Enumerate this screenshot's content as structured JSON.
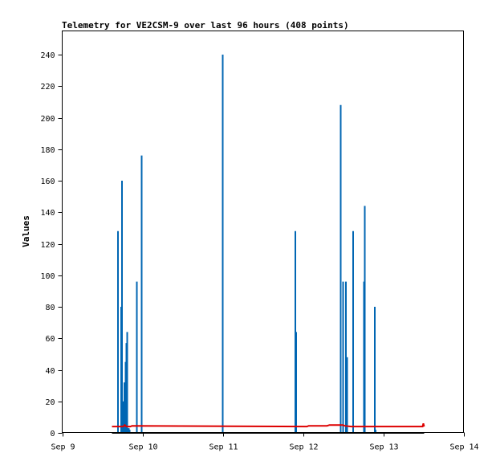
{
  "chart_data": {
    "type": "line",
    "title": "Telemetry for VE2CSM-9 over last 96 hours (408 points)",
    "ylabel": "Values",
    "xlabel": "",
    "x_tick_labels": [
      "Sep 9",
      "Sep 10",
      "Sep 11",
      "Sep 12",
      "Sep 13",
      "Sep 14"
    ],
    "x_range_days": [
      9,
      14
    ],
    "ylim": [
      0,
      255
    ],
    "y_ticks": [
      0,
      20,
      40,
      60,
      80,
      100,
      120,
      140,
      160,
      180,
      200,
      220,
      240
    ],
    "grid": false,
    "legend": "none",
    "series": [
      {
        "color": "#0066b3",
        "style": "spikes",
        "x": [
          9.695,
          9.735,
          9.745,
          9.76,
          9.775,
          9.79,
          9.8,
          9.81,
          9.83,
          9.84,
          9.93,
          9.99,
          11.0,
          11.905,
          11.915,
          12.47,
          12.5,
          12.535,
          12.55,
          12.625,
          12.76,
          12.77,
          12.895,
          12.905
        ],
        "values": [
          128,
          80,
          160,
          20,
          32,
          45,
          57,
          64,
          3,
          2,
          96,
          176,
          240,
          128,
          64,
          208,
          96,
          96,
          48,
          128,
          96,
          144,
          80,
          2
        ]
      },
      {
        "color": "#dd0000",
        "style": "line",
        "x": [
          9.62,
          9.76,
          9.78,
          9.8,
          9.85,
          9.87,
          12.05,
          12.07,
          12.3,
          12.33,
          12.5,
          12.52,
          12.6,
          12.62,
          13.49,
          13.5,
          13.51
        ],
        "values": [
          4,
          4,
          5,
          4,
          4,
          4.5,
          4,
          4.5,
          4.5,
          5,
          5,
          4.5,
          4,
          4,
          4,
          6,
          4
        ]
      },
      {
        "color": "#000000",
        "style": "line",
        "x": [
          9.62,
          13.51
        ],
        "values": [
          0,
          0
        ]
      }
    ]
  }
}
